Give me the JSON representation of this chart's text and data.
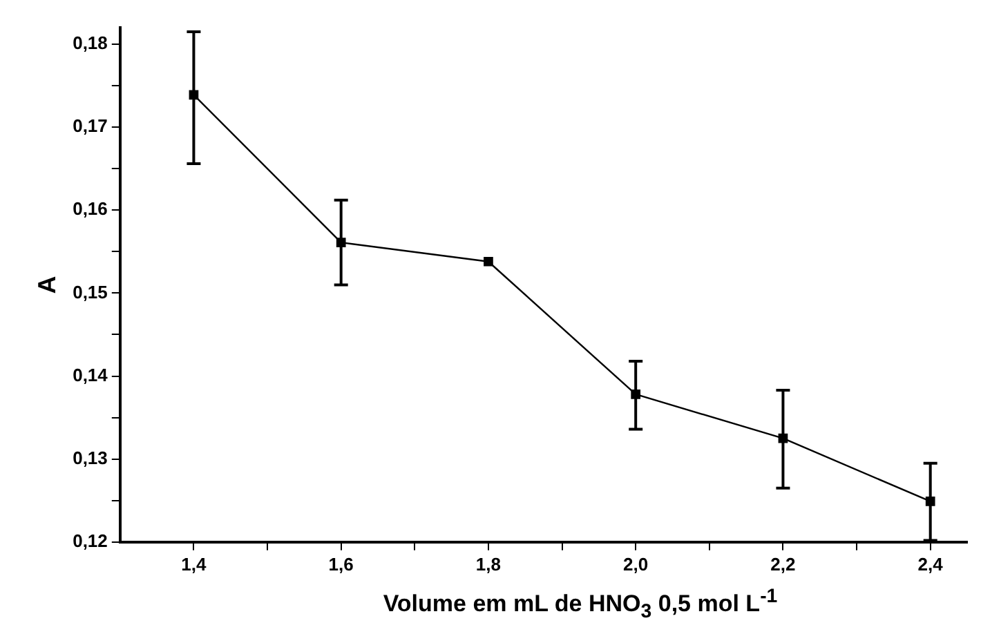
{
  "chart_data": {
    "type": "line",
    "xlabel": "Volume em mL de HNO$_{3}$ 0,5 mol L$^{-1}$",
    "ylabel": "A",
    "x": [
      1.4,
      1.6,
      1.8,
      2.0,
      2.2,
      2.4
    ],
    "series": [
      {
        "color": "#000000",
        "values": [
          0.1739,
          0.1561,
          0.1538,
          0.1378,
          0.1325,
          0.1249
        ],
        "errors": [
          [
            0.1656,
            0.1815
          ],
          [
            0.151,
            0.1612
          ],
          null,
          [
            0.1336,
            0.1418
          ],
          [
            0.1265,
            0.1383
          ],
          [
            0.1202,
            0.1295
          ]
        ]
      }
    ],
    "xlim": [
      1.3,
      2.45
    ],
    "xticks": [
      {
        "value": 1.4,
        "label": "1,4"
      },
      {
        "value": 1.5,
        "label": null
      },
      {
        "value": 1.6,
        "label": "1,6"
      },
      {
        "value": 1.7,
        "label": null
      },
      {
        "value": 1.8,
        "label": "1,8"
      },
      {
        "value": 1.9,
        "label": null
      },
      {
        "value": 2.0,
        "label": "2,0"
      },
      {
        "value": 2.1,
        "label": null
      },
      {
        "value": 2.2,
        "label": "2,2"
      },
      {
        "value": 2.3,
        "label": null
      },
      {
        "value": 2.4,
        "label": "2,4"
      }
    ],
    "ylim": [
      0.12,
      0.182
    ],
    "yticks": [
      {
        "value": 0.12,
        "label": "0,12"
      },
      {
        "value": 0.125,
        "label": null
      },
      {
        "value": 0.13,
        "label": "0,13"
      },
      {
        "value": 0.135,
        "label": null
      },
      {
        "value": 0.14,
        "label": "0,14"
      },
      {
        "value": 0.145,
        "label": null
      },
      {
        "value": 0.15,
        "label": "0,15"
      },
      {
        "value": 0.155,
        "label": null
      },
      {
        "value": 0.16,
        "label": "0,16"
      },
      {
        "value": 0.165,
        "label": null
      },
      {
        "value": 0.17,
        "label": "0,17"
      },
      {
        "value": 0.175,
        "label": null
      },
      {
        "value": 0.18,
        "label": "0,18"
      }
    ],
    "grid": false,
    "legend": false,
    "marker": "square",
    "line_style": "solid"
  }
}
